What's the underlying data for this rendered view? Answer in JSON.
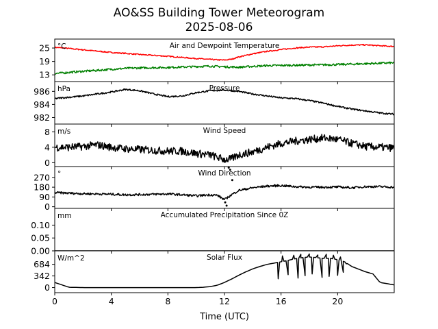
{
  "title_line1": "AO&SS Building Tower Meteorogram",
  "title_line2": "2025-08-06",
  "chart_data": {
    "type": "line",
    "xlabel": "Time (UTC)",
    "xlim": [
      0,
      24
    ],
    "xticks": [
      0,
      4,
      8,
      12,
      16,
      20
    ],
    "panels": [
      {
        "id": "temp",
        "title": "Air and Dewpoint Temperature",
        "unit": "°C",
        "ylim": [
          10,
          29
        ],
        "yticks": [
          13,
          19,
          25
        ],
        "series": [
          {
            "name": "Air Temperature",
            "color": "#ff0000",
            "noise": 0.25,
            "x": [
              0,
              1,
              2,
              3,
              4,
              5,
              6,
              7,
              8,
              9,
              10,
              11,
              11.5,
              12,
              12.5,
              13,
              14,
              15,
              16,
              17,
              18,
              19,
              20,
              21,
              22,
              23,
              24
            ],
            "y": [
              25.3,
              24.8,
              24.2,
              23.6,
              23.0,
              22.6,
              22.1,
              21.7,
              21.3,
              20.8,
              20.3,
              19.9,
              19.7,
              19.6,
              20.0,
              21.0,
              22.4,
              23.5,
              24.3,
              25.0,
              25.4,
              25.5,
              26.0,
              26.3,
              26.4,
              26.0,
              25.7
            ]
          },
          {
            "name": "Dewpoint Temperature",
            "color": "#008000",
            "noise": 0.45,
            "x": [
              0,
              1,
              2,
              3,
              4,
              5,
              6,
              7,
              8,
              9,
              10,
              11,
              12,
              13,
              14,
              15,
              16,
              17,
              18,
              19,
              20,
              21,
              22,
              23,
              24
            ],
            "y": [
              13.6,
              14.1,
              14.6,
              15.0,
              15.5,
              15.9,
              16.1,
              16.2,
              16.3,
              16.5,
              16.7,
              16.9,
              16.6,
              16.4,
              16.8,
              17.1,
              17.2,
              17.3,
              17.4,
              17.5,
              17.6,
              17.8,
              18.0,
              18.2,
              18.4
            ]
          }
        ]
      },
      {
        "id": "pressure",
        "title": "Pressure",
        "unit": "hPa",
        "ylim": [
          981,
          987.5
        ],
        "yticks": [
          982,
          984,
          986
        ],
        "series": [
          {
            "name": "Pressure",
            "color": "#000000",
            "noise": 0.12,
            "x": [
              0,
              1,
              2,
              3,
              4,
              5,
              6,
              7,
              8,
              9,
              10,
              11,
              12,
              13,
              14,
              15,
              16,
              17,
              18,
              19,
              20,
              21,
              22,
              23,
              24
            ],
            "y": [
              984.9,
              985.1,
              985.3,
              985.6,
              985.9,
              986.3,
              986.1,
              985.6,
              985.2,
              985.3,
              985.8,
              986.1,
              986.2,
              986.0,
              985.6,
              985.3,
              985.0,
              984.9,
              984.6,
              984.2,
              983.7,
              983.3,
              983.0,
              982.7,
              982.5
            ]
          }
        ]
      },
      {
        "id": "wspd",
        "title": "Wind Speed",
        "unit": "m/s",
        "ylim": [
          -1,
          10
        ],
        "yticks": [
          0,
          4,
          8
        ],
        "series": [
          {
            "name": "Wind Speed",
            "color": "#000000",
            "noise": 1.0,
            "x": [
              0,
              1,
              2,
              3,
              4,
              5,
              6,
              7,
              8,
              9,
              10,
              11,
              12,
              12.5,
              13,
              14,
              15,
              16,
              17,
              18,
              19,
              20,
              21,
              22,
              23,
              24
            ],
            "y": [
              4.0,
              4.0,
              4.2,
              4.6,
              4.0,
              3.6,
              3.4,
              3.2,
              3.0,
              3.0,
              2.4,
              2.0,
              0.8,
              1.0,
              2.0,
              2.8,
              4.0,
              5.0,
              5.6,
              6.0,
              6.4,
              6.0,
              5.0,
              4.2,
              4.0,
              3.8
            ]
          }
        ]
      },
      {
        "id": "wdir",
        "title": "Wind Direction",
        "unit": "°",
        "ylim": [
          -15,
          370
        ],
        "yticks": [
          0,
          90,
          180,
          270
        ],
        "series": [
          {
            "name": "Wind Direction",
            "color": "#000000",
            "noise": 10,
            "x": [
              0,
              1,
              2,
              3,
              4,
              5,
              6,
              7,
              8,
              9,
              10,
              11,
              11.5,
              12,
              12.5,
              13,
              14,
              15,
              16,
              17,
              18,
              19,
              20,
              21,
              22,
              23,
              24
            ],
            "y": [
              130,
              125,
              120,
              118,
              115,
              110,
              112,
              115,
              118,
              110,
              100,
              110,
              105,
              65,
              110,
              150,
              175,
              190,
              195,
              185,
              180,
              180,
              182,
              175,
              185,
              185,
              180
            ],
            "scatter_x": [
              12.05,
              12.15,
              12.3,
              12.4,
              12.55
            ],
            "scatter_y": [
              40,
              10,
              360,
              340,
              245
            ]
          }
        ]
      },
      {
        "id": "precip",
        "title": "Accumulated Precipitation Since 0Z",
        "unit": "mm",
        "ylim": [
          0,
          0.165
        ],
        "yticks": [
          0.0,
          0.05,
          0.1
        ],
        "yticklabels": [
          "0.00",
          "0.05",
          "0.10"
        ],
        "series": [
          {
            "name": "Accumulated Precipitation",
            "color": "#000000",
            "noise": 0,
            "x": [
              0,
              24
            ],
            "y": [
              0.0,
              0.0
            ]
          }
        ]
      },
      {
        "id": "solar",
        "title": "Solar Flux",
        "unit": "W/m^2",
        "ylim": [
          -150,
          1080
        ],
        "yticks": [
          0,
          342,
          684
        ],
        "series": [
          {
            "name": "Solar Flux",
            "color": "#000000",
            "noise": 0,
            "x": [
              0,
              0.5,
              1,
              2,
              4,
              6,
              8,
              10,
              10.5,
              11,
              11.5,
              12,
              12.5,
              13,
              13.5,
              14,
              14.5,
              15,
              15.5,
              16,
              16.5,
              17,
              17.5,
              18,
              18.5,
              19,
              19.5,
              20,
              20.5,
              21,
              21.5,
              22,
              22.5,
              23,
              24
            ],
            "y": [
              150,
              80,
              10,
              0,
              0,
              0,
              0,
              0,
              10,
              30,
              70,
              150,
              250,
              360,
              460,
              550,
              620,
              680,
              720,
              760,
              800,
              850,
              880,
              900,
              880,
              860,
              860,
              820,
              760,
              620,
              540,
              460,
              400,
              150,
              80
            ],
            "spikes": [
              [
                15.8,
                260
              ],
              [
                16.1,
                930
              ],
              [
                16.5,
                380
              ],
              [
                16.9,
                950
              ],
              [
                17.2,
                280
              ],
              [
                17.4,
                980
              ],
              [
                17.7,
                350
              ],
              [
                18.0,
                990
              ],
              [
                18.2,
                400
              ],
              [
                18.6,
                960
              ],
              [
                18.9,
                300
              ],
              [
                19.2,
                980
              ],
              [
                19.4,
                330
              ],
              [
                19.7,
                950
              ],
              [
                20.0,
                360
              ],
              [
                20.2,
                900
              ],
              [
                20.4,
                450
              ],
              [
                20.6,
                700
              ]
            ]
          }
        ]
      }
    ]
  }
}
